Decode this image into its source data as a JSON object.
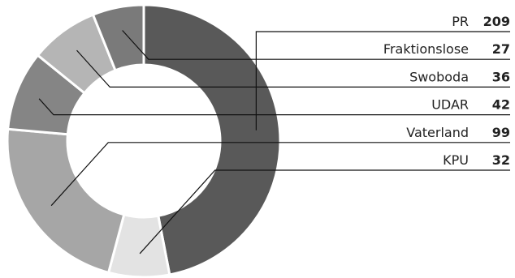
{
  "chart_data": {
    "type": "pie",
    "title": "",
    "series": [
      {
        "name": "PR",
        "value": 209,
        "color": "#595959"
      },
      {
        "name": "KPU",
        "value": 32,
        "color": "#e3e3e3"
      },
      {
        "name": "Vaterland",
        "value": 99,
        "color": "#a6a6a6"
      },
      {
        "name": "UDAR",
        "value": 42,
        "color": "#858585"
      },
      {
        "name": "Swoboda",
        "value": 36,
        "color": "#b5b5b5"
      },
      {
        "name": "Fraktionslose",
        "value": 27,
        "color": "#7a7a7a"
      }
    ],
    "legend_order": [
      "PR",
      "Fraktionslose",
      "Swoboda",
      "UDAR",
      "Vaterland",
      "KPU"
    ],
    "legend_placement": "right",
    "donut": true
  }
}
